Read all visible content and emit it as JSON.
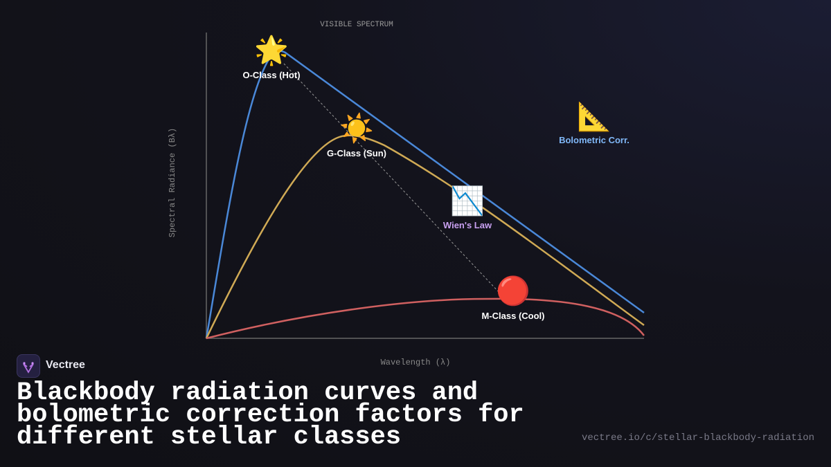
{
  "diagram": {
    "top_label": "VISIBLE SPECTRUM",
    "y_axis_label": "Spectral Radiance (Bλ)",
    "x_axis_label": "Wavelength (λ)",
    "annotations": [
      {
        "icon": "🌟",
        "label": "O-Class (Hot)"
      },
      {
        "icon": "☀️",
        "label": "G-Class (Sun)"
      },
      {
        "icon": "📉",
        "label": "Wien's Law"
      },
      {
        "icon": "🔴",
        "label": "M-Class (Cool)"
      },
      {
        "icon": "📐",
        "label": "Bolometric Corr."
      }
    ]
  },
  "footer": {
    "brand": "Vectree",
    "title": "Blackbody radiation curves and bolometric correction factors for different stellar classes",
    "url": "vectree.io/c/stellar-blackbody-radiation"
  }
}
